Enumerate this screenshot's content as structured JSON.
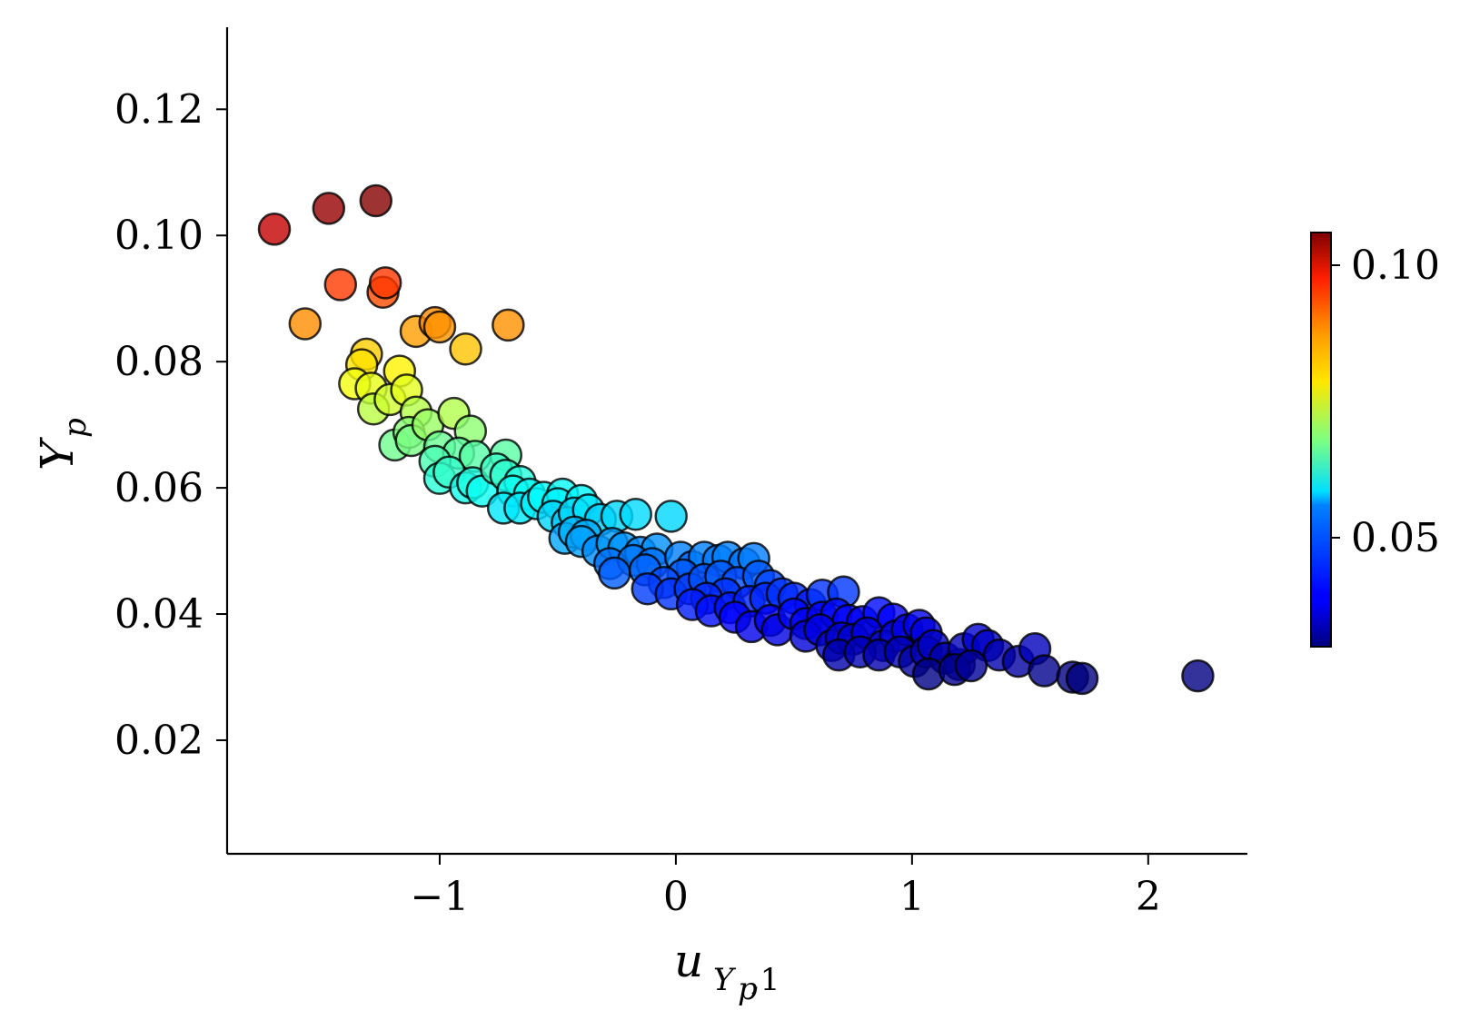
{
  "chart_data": {
    "type": "scatter",
    "title": "",
    "xlabel": {
      "main": "u",
      "subscript": "Y",
      "sub_subscript": "p",
      "suffix": ",1"
    },
    "ylabel": {
      "main": "Y",
      "subscript": "p"
    },
    "xlim": [
      -1.9,
      2.42
    ],
    "ylim": [
      0.002,
      0.133
    ],
    "x_ticks": [
      -1,
      0,
      1,
      2
    ],
    "x_tick_labels": [
      "−1",
      "0",
      "1",
      "2"
    ],
    "y_ticks": [
      0.02,
      0.04,
      0.06,
      0.08,
      0.1,
      0.12
    ],
    "y_tick_labels": [
      "0.02",
      "0.04",
      "0.06",
      "0.08",
      "0.10",
      "0.12"
    ],
    "grid": false,
    "marker": {
      "shape": "circle",
      "edgecolor": "#000000",
      "alpha": 0.8
    },
    "colorbar": {
      "colormap": "jet",
      "range": [
        0.03,
        0.106
      ],
      "ticks": [
        0.05,
        0.1
      ],
      "tick_labels": [
        "0.05",
        "0.10"
      ]
    },
    "points": [
      {
        "x": -1.7,
        "y": 0.101
      },
      {
        "x": -1.47,
        "y": 0.1043
      },
      {
        "x": -1.27,
        "y": 0.1055
      },
      {
        "x": -1.42,
        "y": 0.0922
      },
      {
        "x": -1.24,
        "y": 0.091
      },
      {
        "x": -1.23,
        "y": 0.0925
      },
      {
        "x": -1.57,
        "y": 0.086
      },
      {
        "x": -1.1,
        "y": 0.0848
      },
      {
        "x": -1.02,
        "y": 0.0862
      },
      {
        "x": -1.0,
        "y": 0.0855
      },
      {
        "x": -0.89,
        "y": 0.082
      },
      {
        "x": -0.71,
        "y": 0.0858
      },
      {
        "x": -1.31,
        "y": 0.0812
      },
      {
        "x": -1.33,
        "y": 0.0795
      },
      {
        "x": -1.17,
        "y": 0.0785
      },
      {
        "x": -1.36,
        "y": 0.0765
      },
      {
        "x": -1.29,
        "y": 0.0758
      },
      {
        "x": -1.28,
        "y": 0.0725
      },
      {
        "x": -1.21,
        "y": 0.074
      },
      {
        "x": -1.14,
        "y": 0.0755
      },
      {
        "x": -1.1,
        "y": 0.072
      },
      {
        "x": -1.19,
        "y": 0.0668
      },
      {
        "x": -1.13,
        "y": 0.0688
      },
      {
        "x": -1.12,
        "y": 0.0675
      },
      {
        "x": -1.05,
        "y": 0.07
      },
      {
        "x": -0.94,
        "y": 0.0718
      },
      {
        "x": -0.87,
        "y": 0.069
      },
      {
        "x": -1.0,
        "y": 0.0665
      },
      {
        "x": -0.92,
        "y": 0.0655
      },
      {
        "x": -0.85,
        "y": 0.065
      },
      {
        "x": -1.02,
        "y": 0.0642
      },
      {
        "x": -1.0,
        "y": 0.0615
      },
      {
        "x": -0.96,
        "y": 0.0625
      },
      {
        "x": -0.89,
        "y": 0.06
      },
      {
        "x": -0.86,
        "y": 0.0608
      },
      {
        "x": -0.82,
        "y": 0.0595
      },
      {
        "x": -0.72,
        "y": 0.0652
      },
      {
        "x": -0.76,
        "y": 0.063
      },
      {
        "x": -0.72,
        "y": 0.062
      },
      {
        "x": -0.66,
        "y": 0.061
      },
      {
        "x": -0.69,
        "y": 0.0595
      },
      {
        "x": -0.62,
        "y": 0.059
      },
      {
        "x": -0.73,
        "y": 0.0568
      },
      {
        "x": -0.66,
        "y": 0.0568
      },
      {
        "x": -0.59,
        "y": 0.0575
      },
      {
        "x": -0.56,
        "y": 0.0585
      },
      {
        "x": -0.48,
        "y": 0.059
      },
      {
        "x": -0.5,
        "y": 0.0575
      },
      {
        "x": -0.4,
        "y": 0.058
      },
      {
        "x": -0.52,
        "y": 0.0555
      },
      {
        "x": -0.46,
        "y": 0.0545
      },
      {
        "x": -0.43,
        "y": 0.056
      },
      {
        "x": -0.37,
        "y": 0.0565
      },
      {
        "x": -0.32,
        "y": 0.055
      },
      {
        "x": -0.25,
        "y": 0.0555
      },
      {
        "x": -0.17,
        "y": 0.0558
      },
      {
        "x": -0.02,
        "y": 0.0555
      },
      {
        "x": -0.47,
        "y": 0.052
      },
      {
        "x": -0.43,
        "y": 0.053
      },
      {
        "x": -0.38,
        "y": 0.0525
      },
      {
        "x": -0.4,
        "y": 0.0515
      },
      {
        "x": -0.33,
        "y": 0.05
      },
      {
        "x": -0.27,
        "y": 0.0512
      },
      {
        "x": -0.22,
        "y": 0.0505
      },
      {
        "x": -0.15,
        "y": 0.0498
      },
      {
        "x": -0.08,
        "y": 0.0503
      },
      {
        "x": -0.28,
        "y": 0.048
      },
      {
        "x": -0.18,
        "y": 0.0485
      },
      {
        "x": -0.1,
        "y": 0.048
      },
      {
        "x": -0.26,
        "y": 0.0465
      },
      {
        "x": -0.13,
        "y": 0.047
      },
      {
        "x": 0.02,
        "y": 0.049
      },
      {
        "x": 0.07,
        "y": 0.0475
      },
      {
        "x": 0.12,
        "y": 0.049
      },
      {
        "x": 0.18,
        "y": 0.0485
      },
      {
        "x": 0.22,
        "y": 0.049
      },
      {
        "x": 0.29,
        "y": 0.048
      },
      {
        "x": 0.33,
        "y": 0.0488
      },
      {
        "x": 0.03,
        "y": 0.0462
      },
      {
        "x": -0.05,
        "y": 0.045
      },
      {
        "x": -0.12,
        "y": 0.044
      },
      {
        "x": -0.02,
        "y": 0.0432
      },
      {
        "x": 0.06,
        "y": 0.044
      },
      {
        "x": 0.12,
        "y": 0.0455
      },
      {
        "x": 0.19,
        "y": 0.046
      },
      {
        "x": 0.26,
        "y": 0.045
      },
      {
        "x": 0.35,
        "y": 0.046
      },
      {
        "x": 0.4,
        "y": 0.0445
      },
      {
        "x": 0.21,
        "y": 0.0432
      },
      {
        "x": 0.13,
        "y": 0.0425
      },
      {
        "x": 0.07,
        "y": 0.0415
      },
      {
        "x": 0.15,
        "y": 0.0405
      },
      {
        "x": 0.23,
        "y": 0.041
      },
      {
        "x": 0.31,
        "y": 0.042
      },
      {
        "x": 0.38,
        "y": 0.0425
      },
      {
        "x": 0.45,
        "y": 0.0432
      },
      {
        "x": 0.5,
        "y": 0.0425
      },
      {
        "x": 0.57,
        "y": 0.0415
      },
      {
        "x": 0.62,
        "y": 0.043
      },
      {
        "x": 0.71,
        "y": 0.0435
      },
      {
        "x": 0.25,
        "y": 0.0395
      },
      {
        "x": 0.32,
        "y": 0.038
      },
      {
        "x": 0.4,
        "y": 0.039
      },
      {
        "x": 0.43,
        "y": 0.0375
      },
      {
        "x": 0.5,
        "y": 0.04
      },
      {
        "x": 0.55,
        "y": 0.0385
      },
      {
        "x": 0.62,
        "y": 0.0395
      },
      {
        "x": 0.68,
        "y": 0.04
      },
      {
        "x": 0.73,
        "y": 0.039
      },
      {
        "x": 0.79,
        "y": 0.0388
      },
      {
        "x": 0.86,
        "y": 0.0402
      },
      {
        "x": 0.92,
        "y": 0.0392
      },
      {
        "x": 0.55,
        "y": 0.0365
      },
      {
        "x": 0.61,
        "y": 0.0375
      },
      {
        "x": 0.66,
        "y": 0.035
      },
      {
        "x": 0.7,
        "y": 0.0362
      },
      {
        "x": 0.75,
        "y": 0.036
      },
      {
        "x": 0.81,
        "y": 0.037
      },
      {
        "x": 0.88,
        "y": 0.035
      },
      {
        "x": 0.93,
        "y": 0.0365
      },
      {
        "x": 0.98,
        "y": 0.0375
      },
      {
        "x": 1.03,
        "y": 0.0382
      },
      {
        "x": 1.06,
        "y": 0.037
      },
      {
        "x": 0.69,
        "y": 0.0335
      },
      {
        "x": 0.78,
        "y": 0.034
      },
      {
        "x": 0.86,
        "y": 0.0335
      },
      {
        "x": 0.95,
        "y": 0.034
      },
      {
        "x": 1.01,
        "y": 0.0325
      },
      {
        "x": 1.06,
        "y": 0.034
      },
      {
        "x": 1.09,
        "y": 0.035
      },
      {
        "x": 1.14,
        "y": 0.033
      },
      {
        "x": 1.2,
        "y": 0.032
      },
      {
        "x": 1.22,
        "y": 0.0345
      },
      {
        "x": 1.28,
        "y": 0.036
      },
      {
        "x": 1.32,
        "y": 0.035
      },
      {
        "x": 1.37,
        "y": 0.0335
      },
      {
        "x": 1.07,
        "y": 0.0305
      },
      {
        "x": 1.18,
        "y": 0.0312
      },
      {
        "x": 1.25,
        "y": 0.0318
      },
      {
        "x": 1.45,
        "y": 0.0325
      },
      {
        "x": 1.52,
        "y": 0.0345
      },
      {
        "x": 1.56,
        "y": 0.031
      },
      {
        "x": 1.68,
        "y": 0.03
      },
      {
        "x": 1.72,
        "y": 0.0298
      },
      {
        "x": 2.21,
        "y": 0.0302
      }
    ]
  }
}
